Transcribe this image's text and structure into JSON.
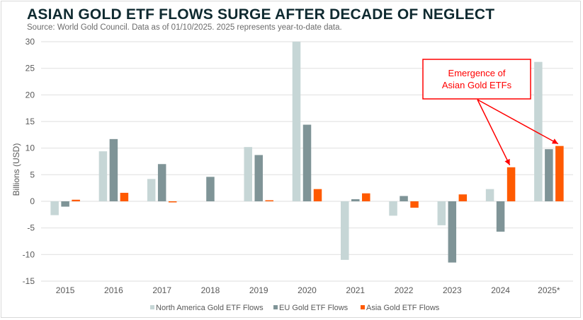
{
  "header": {
    "title": "ASIAN GOLD ETF FLOWS SURGE AFTER DECADE OF NEGLECT",
    "subtitle": "Source: World Gold Council. Data as of 01/10/2025. 2025 represents year-to-date data."
  },
  "chart_data": {
    "type": "bar",
    "title": "ASIAN GOLD ETF FLOWS SURGE AFTER DECADE OF NEGLECT",
    "subtitle": "Source: World Gold Council. Data as of 01/10/2025. 2025 represents year-to-date data.",
    "xlabel": "",
    "ylabel": "Billions (USD)",
    "ylim": [
      -15,
      30
    ],
    "yticks": [
      30,
      25,
      20,
      15,
      10,
      5,
      0,
      -5,
      -10,
      -15
    ],
    "grid": true,
    "legend_position": "bottom",
    "categories": [
      "2015",
      "2016",
      "2017",
      "2018",
      "2019",
      "2020",
      "2021",
      "2022",
      "2023",
      "2024",
      "2025*"
    ],
    "series": [
      {
        "name": "North America Gold ETF Flows",
        "color": "#c6d6d6",
        "values": [
          -2.6,
          9.4,
          4.2,
          0.0,
          10.2,
          30.0,
          -11.0,
          -2.7,
          -4.5,
          2.3,
          26.2
        ]
      },
      {
        "name": "EU Gold ETF Flows",
        "color": "#7f9497",
        "values": [
          -1.0,
          11.7,
          7.0,
          4.6,
          8.7,
          14.4,
          0.4,
          1.0,
          -11.5,
          -5.7,
          9.8
        ]
      },
      {
        "name": "Asia Gold ETF Flows",
        "color": "#ff5a00",
        "values": [
          0.3,
          1.6,
          -0.2,
          0.0,
          0.1,
          2.3,
          1.5,
          -1.2,
          1.3,
          6.4,
          10.4
        ]
      }
    ],
    "annotations": [
      {
        "text_lines": [
          "Emergence of",
          "Asian Gold ETFs"
        ],
        "color": "#ff0000",
        "points_to": [
          {
            "category": "2024",
            "series": "Asia Gold ETF Flows"
          },
          {
            "category": "2025*",
            "series": "Asia Gold ETF Flows"
          }
        ]
      }
    ]
  }
}
